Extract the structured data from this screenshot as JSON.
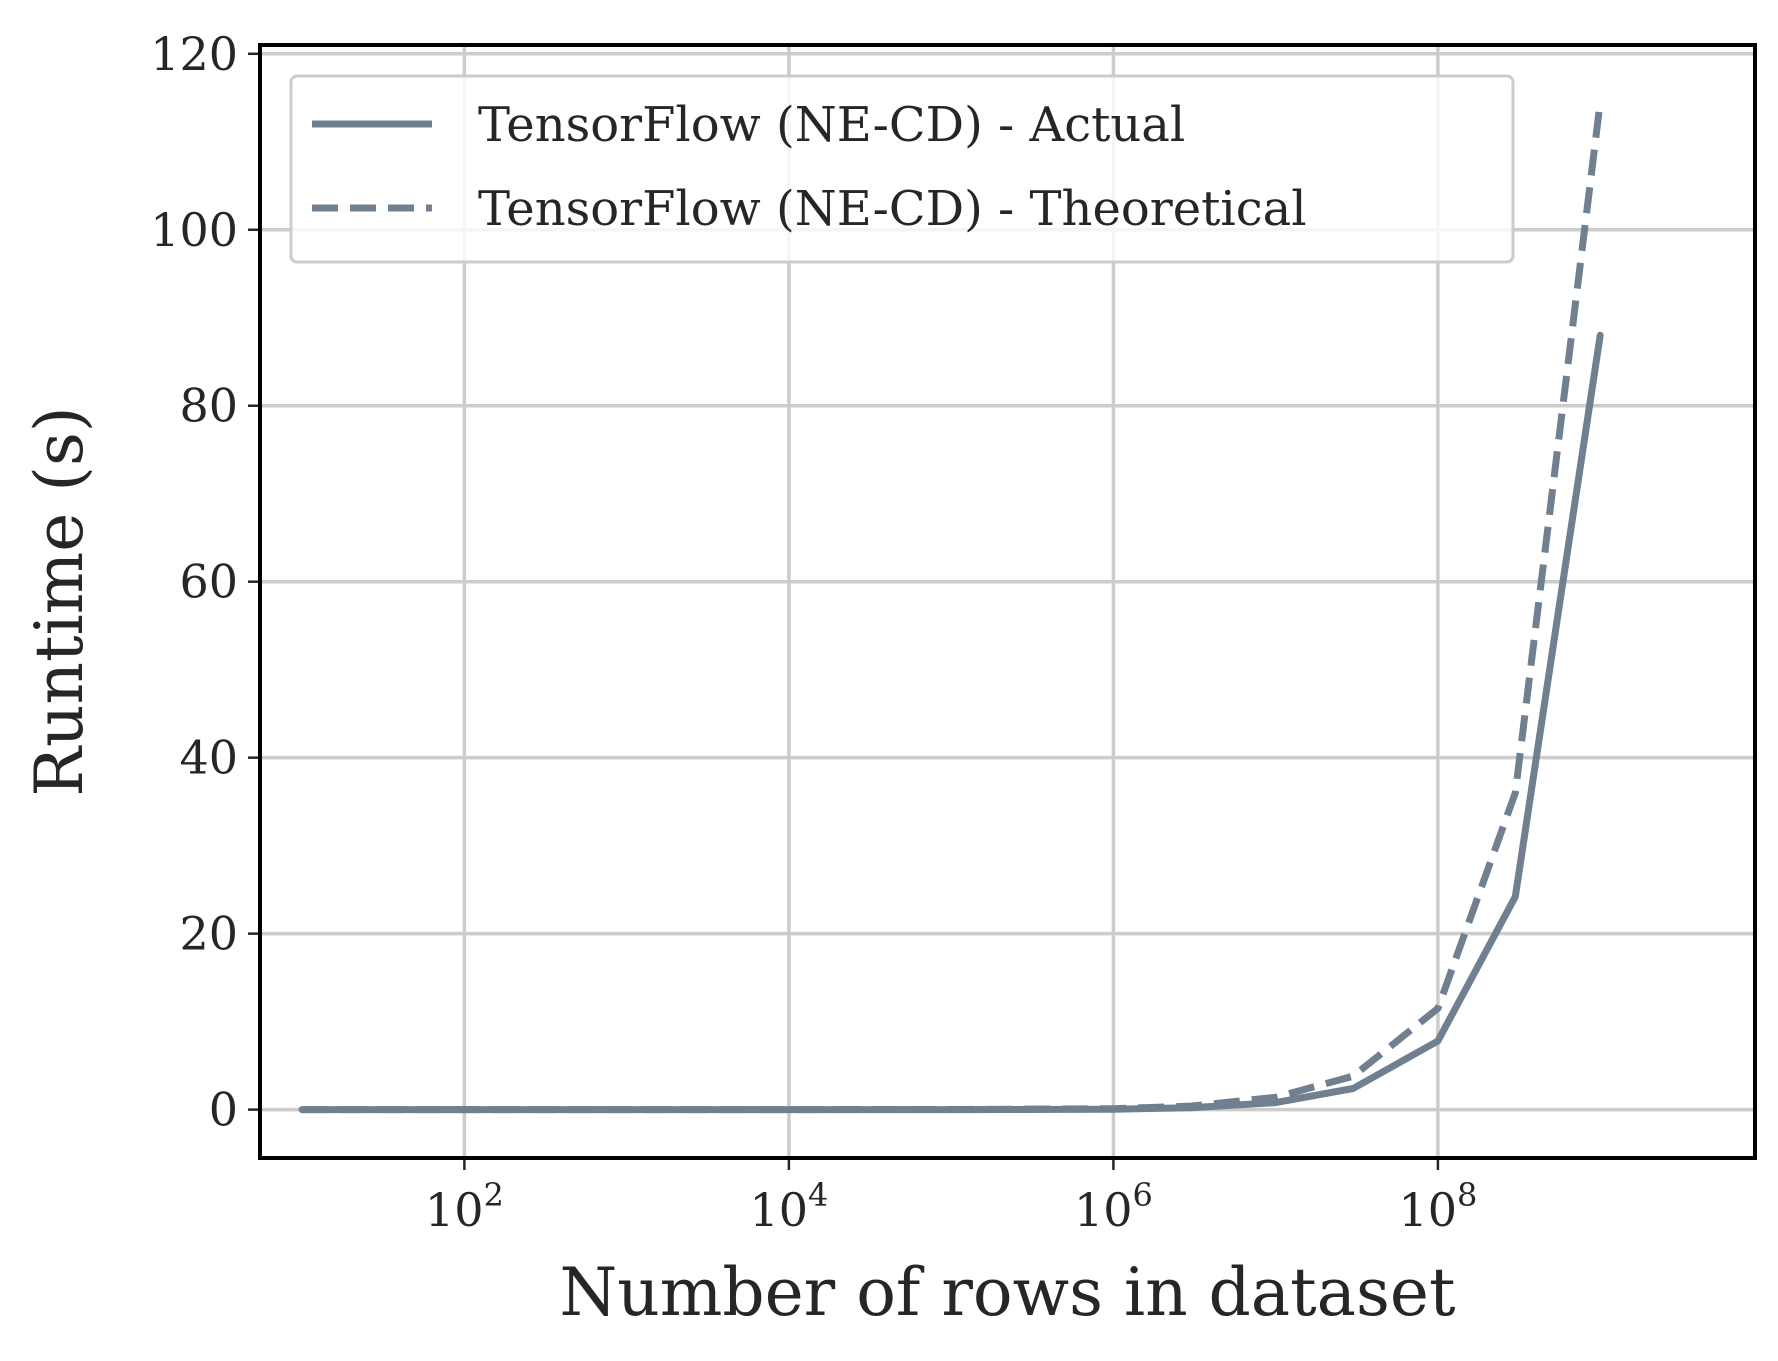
{
  "chart_data": {
    "type": "line",
    "title": "",
    "xlabel": "Number of rows in dataset",
    "ylabel": "Runtime (s)",
    "x_scale": "log",
    "xlim": [
      5.5,
      9000000000
    ],
    "ylim": [
      -5.5,
      121
    ],
    "x_ticks": [
      {
        "value": 100,
        "base": "10",
        "exp": "2"
      },
      {
        "value": 10000,
        "base": "10",
        "exp": "4"
      },
      {
        "value": 1000000,
        "base": "10",
        "exp": "6"
      },
      {
        "value": 100000000,
        "base": "10",
        "exp": "8"
      }
    ],
    "y_ticks": [
      0,
      20,
      40,
      60,
      80,
      100,
      120
    ],
    "grid": true,
    "legend_position": "upper-left",
    "colors": {
      "line": "#708090",
      "grid": "#cccccc",
      "frame": "#000000",
      "text": "#262626"
    },
    "x": [
      10,
      100,
      1000,
      10000,
      100000,
      1000000,
      3000000,
      10000000,
      30000000,
      100000000,
      300000000,
      1000000000
    ],
    "series": [
      {
        "name": "TensorFlow (NE-CD) - Actual",
        "style": "solid",
        "values": [
          0.0,
          0.0,
          0.0,
          0.0,
          0.0,
          0.05,
          0.2,
          0.8,
          2.4,
          7.8,
          24.2,
          88.0
        ]
      },
      {
        "name": "TensorFlow (NE-CD) - Theoretical",
        "style": "dashed",
        "values": [
          0.0,
          0.0,
          0.0,
          0.0,
          0.01,
          0.1,
          0.4,
          1.4,
          3.8,
          11.5,
          36.0,
          114.5
        ]
      }
    ]
  }
}
